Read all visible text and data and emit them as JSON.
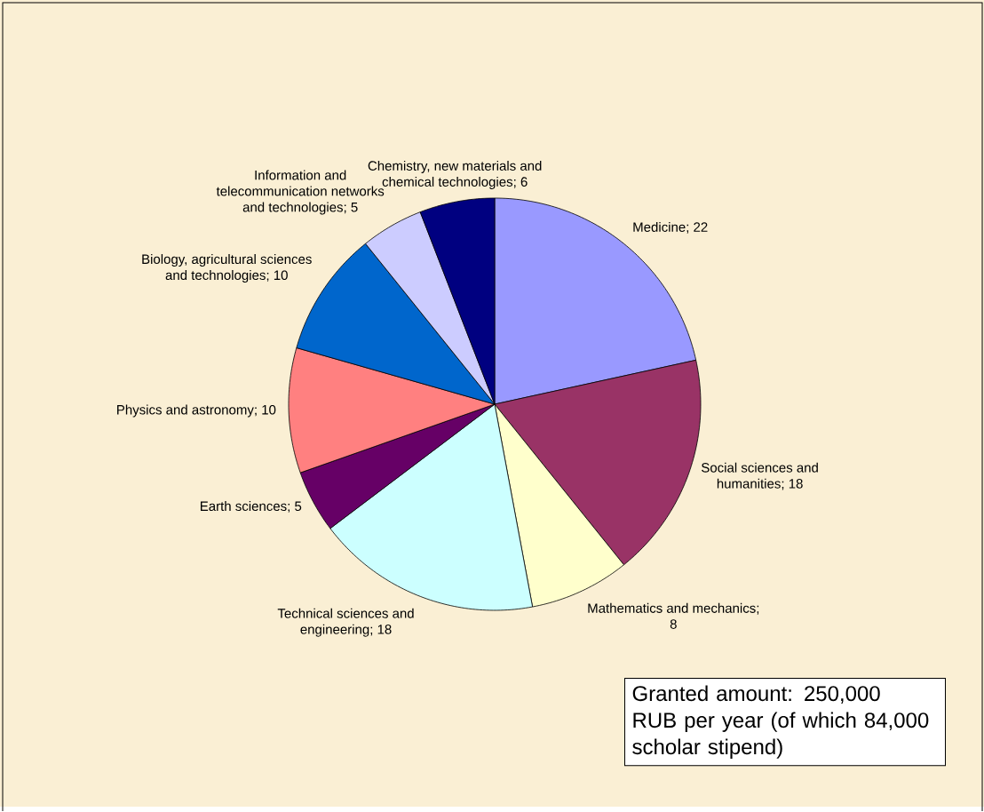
{
  "chart_data": {
    "type": "pie",
    "categories": [
      "Medicine",
      "Social sciences and humanities",
      "Mathematics and mechanics",
      "Technical sciences and engineering",
      "Earth sciences",
      "Physics and astronomy",
      "Biology, agricultural sciences and technologies",
      "Information and telecommunication networks and technologies",
      "Chemistry, new materials and chemical technologies"
    ],
    "values": [
      22,
      18,
      8,
      18,
      5,
      10,
      10,
      5,
      6
    ],
    "colors": [
      "#9999ff",
      "#993366",
      "#ffffcc",
      "#ccffff",
      "#660066",
      "#ff8080",
      "#0066cc",
      "#ccccff",
      "#000080"
    ],
    "value_labels": [
      "; 22",
      "; 18",
      "; 8",
      "; 18",
      "; 5",
      "; 10",
      "; 10",
      "; 5",
      "; 6"
    ],
    "annotations": [
      "Granted amount: 250,000 RUB per year (of which 84,000 scholar stipend)"
    ]
  }
}
